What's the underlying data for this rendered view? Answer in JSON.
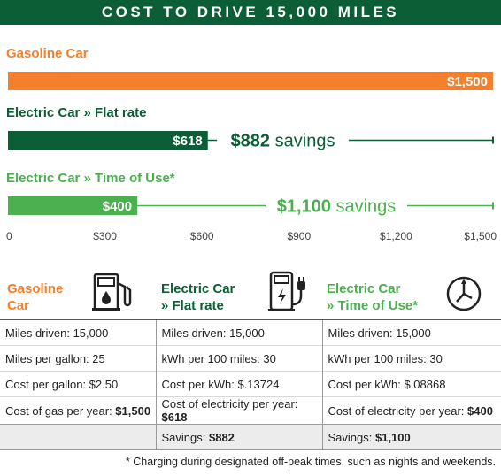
{
  "header": {
    "title": "COST TO DRIVE 15,000 MILES"
  },
  "chart_data": {
    "type": "bar",
    "orientation": "horizontal",
    "categories": [
      "Gasoline Car",
      "Electric Car » Flat rate",
      "Electric Car » Time of Use*"
    ],
    "values": [
      1500,
      618,
      400
    ],
    "value_labels": [
      "$1,500",
      "$618",
      "$400"
    ],
    "savings": [
      {
        "amount": "$882",
        "word": "savings"
      },
      {
        "amount": "$1,100",
        "word": "savings"
      }
    ],
    "xticks": [
      0,
      300,
      600,
      900,
      1200,
      1500
    ],
    "xtick_labels": [
      "0",
      "$300",
      "$600",
      "$900",
      "$1,200",
      "$1,500"
    ],
    "xlim": [
      0,
      1500
    ],
    "colors": [
      "#f47f2c",
      "#0b5e35",
      "#4caf50"
    ],
    "grid": false,
    "title": "COST TO DRIVE 15,000 MILES"
  },
  "table": {
    "columns": [
      {
        "title_line1": "Gasoline",
        "title_line2": "Car",
        "color": "#f47f2c",
        "icon": "gas-pump-icon"
      },
      {
        "title_line1": "Electric Car",
        "title_line2": "» Flat rate",
        "color": "#0b5e35",
        "icon": "ev-charger-icon"
      },
      {
        "title_line1": "Electric Car",
        "title_line2": "» Time of Use*",
        "color": "#4caf50",
        "icon": "clock-icon"
      }
    ],
    "rows": [
      [
        {
          "label": "Miles driven: ",
          "value": "15,000"
        },
        {
          "label": "Miles driven: ",
          "value": "15,000"
        },
        {
          "label": "Miles driven: ",
          "value": "15,000"
        }
      ],
      [
        {
          "label": "Miles per gallon: ",
          "value": "25"
        },
        {
          "label": "kWh per 100 miles: ",
          "value": "30"
        },
        {
          "label": "kWh per 100 miles: ",
          "value": "30"
        }
      ],
      [
        {
          "label": "Cost per gallon: ",
          "value": "$2.50"
        },
        {
          "label": "Cost per kWh: ",
          "value": "$.13724"
        },
        {
          "label": "Cost per kWh: ",
          "value": "$.08868"
        }
      ],
      [
        {
          "label": "Cost of gas per year: ",
          "value": "$1,500",
          "bold": true
        },
        {
          "label": "Cost of electricity per year: ",
          "value": "$618",
          "bold": true
        },
        {
          "label": "Cost of electricity per year: ",
          "value": "$400",
          "bold": true
        }
      ]
    ],
    "savings_row": [
      null,
      {
        "label": "Savings: ",
        "value": "$882"
      },
      {
        "label": "Savings: ",
        "value": "$1,100"
      }
    ]
  },
  "footnote": "* Charging during designated off-peak times, such as nights and weekends."
}
